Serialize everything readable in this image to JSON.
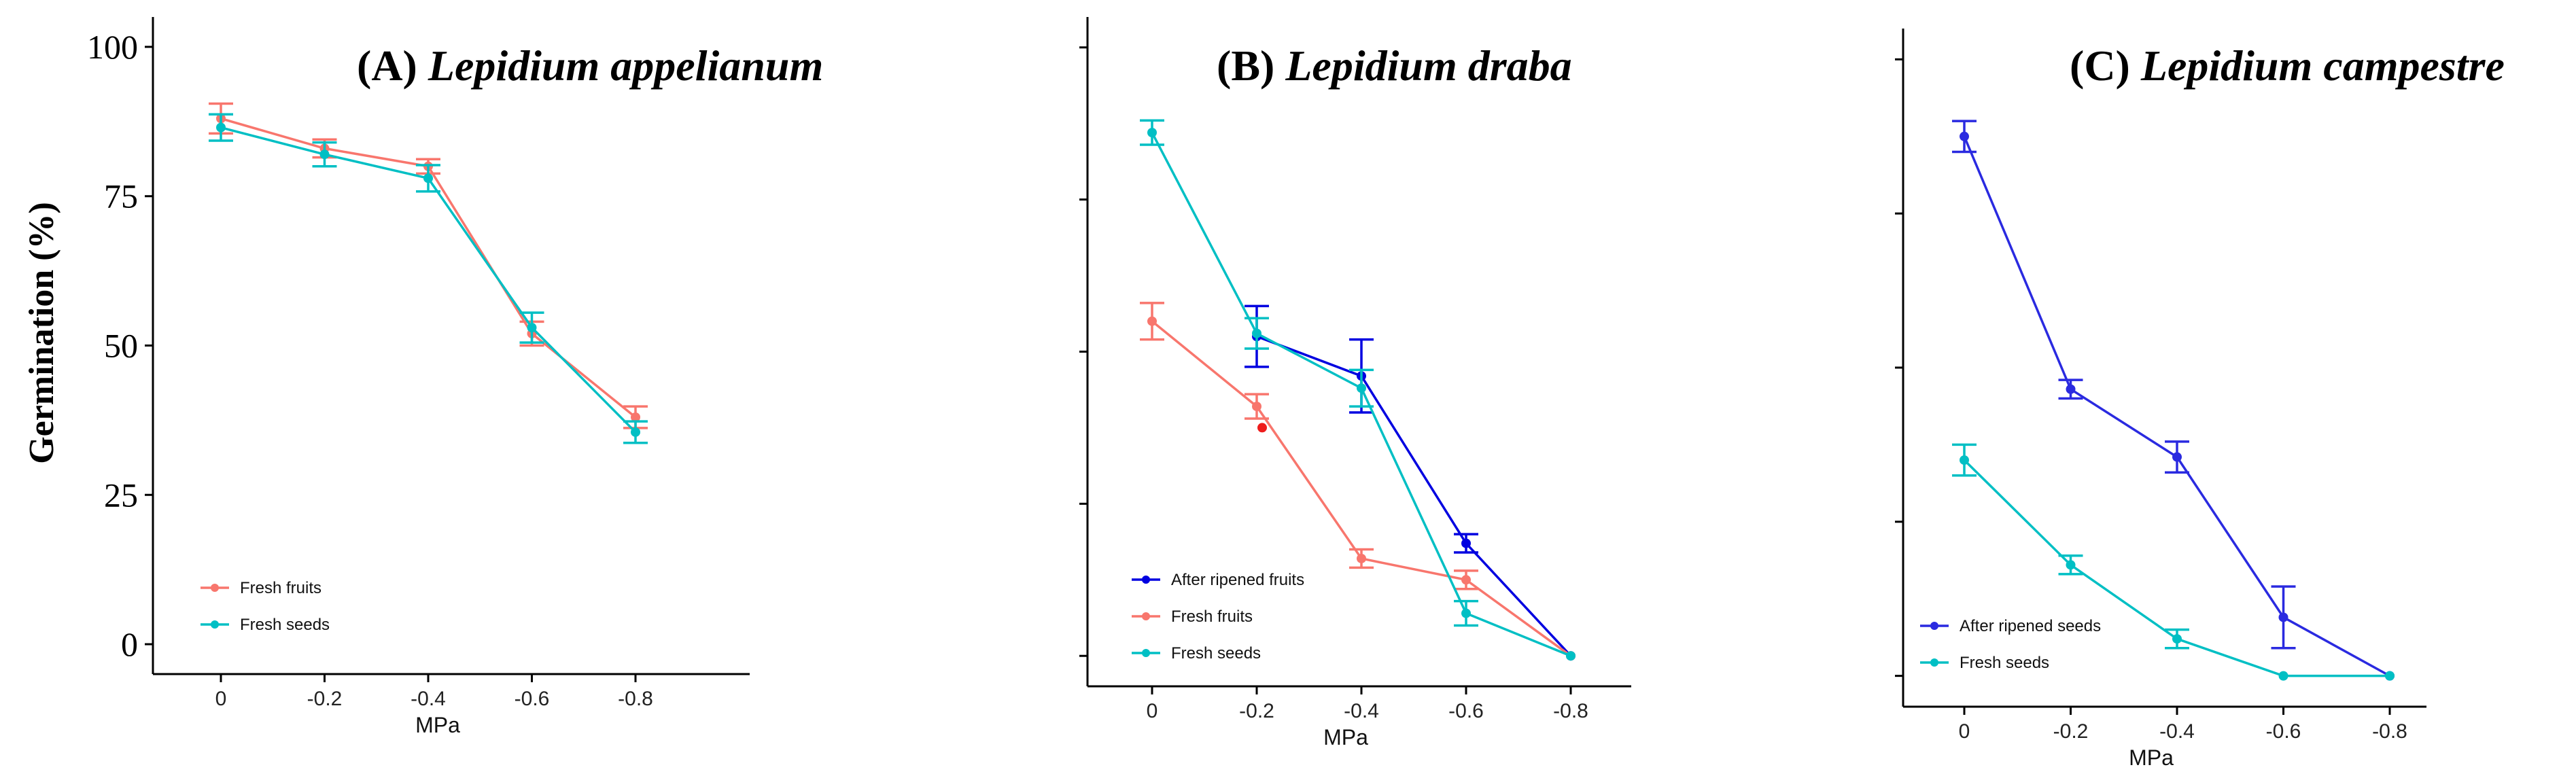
{
  "figure": {
    "y_axis_label": "Germination  (%)",
    "x_axis_label": "MPa"
  },
  "chart_data": [
    {
      "type": "line",
      "panel_label": "(A)",
      "title_species": "Lepidium appelianum",
      "xlabel": "MPa",
      "ylabel": "Germination  (%)",
      "categories": [
        "0",
        "-0.2",
        "-0.4",
        "-0.6",
        "-0.8"
      ],
      "ylim": [
        -5,
        105
      ],
      "yticks": [
        0,
        25,
        50,
        75,
        100
      ],
      "show_y_tick_labels": true,
      "series": [
        {
          "name": "Fresh fruits",
          "color": "#f8766d",
          "values": [
            88,
            83,
            80,
            52,
            38
          ],
          "errors": [
            2.5,
            1.5,
            1.2,
            2.0,
            1.8
          ]
        },
        {
          "name": "Fresh seeds",
          "color": "#00bfc4",
          "values": [
            86.5,
            82,
            78,
            53,
            35.5
          ],
          "errors": [
            2.2,
            2.0,
            2.2,
            2.5,
            1.8
          ]
        }
      ],
      "legend": {
        "position": "bottom-left",
        "entries": [
          "Fresh fruits",
          "Fresh seeds"
        ]
      }
    },
    {
      "type": "line",
      "panel_label": "(B)",
      "title_species": "Lepidium draba",
      "xlabel": "MPa",
      "ylabel": "",
      "categories": [
        "0",
        "-0.2",
        "-0.4",
        "-0.6",
        "-0.8"
      ],
      "ylim": [
        -5,
        105
      ],
      "yticks": [
        0,
        25,
        50,
        75,
        100
      ],
      "show_y_tick_labels": false,
      "series": [
        {
          "name": "After ripened fruits",
          "color": "#0000e0",
          "values": [
            null,
            52.5,
            46,
            18.5,
            0
          ],
          "errors": [
            null,
            5,
            6,
            1.5,
            0
          ]
        },
        {
          "name": "Fresh fruits",
          "color": "#f8766d",
          "values": [
            55,
            41,
            16,
            12.5,
            0
          ],
          "errors": [
            3,
            2,
            1.5,
            1.5,
            0
          ]
        },
        {
          "name": "Fresh seeds",
          "color": "#00bfc4",
          "values": [
            86,
            53,
            44,
            7,
            0
          ],
          "errors": [
            2,
            2.5,
            3,
            2,
            0
          ]
        }
      ],
      "outlier": {
        "x": "-0.2",
        "y": 37.5,
        "color": "#ee1c1c"
      },
      "legend": {
        "position": "bottom-left",
        "entries": [
          "After ripened fruits",
          "Fresh fruits",
          "Fresh seeds"
        ]
      }
    },
    {
      "type": "line",
      "panel_label": "(C)",
      "title_species": "Lepidium campestre",
      "xlabel": "MPa",
      "ylabel": "",
      "categories": [
        "0",
        "-0.2",
        "-0.4",
        "-0.6",
        "-0.8"
      ],
      "ylim": [
        -5,
        105
      ],
      "yticks": [
        0,
        25,
        50,
        75,
        100
      ],
      "show_y_tick_labels": false,
      "series": [
        {
          "name": "After ripened seeds",
          "color": "#2a2ae0",
          "values": [
            87.5,
            46.5,
            35.5,
            9.5,
            0
          ],
          "errors": [
            2.5,
            1.5,
            2.5,
            5,
            0
          ]
        },
        {
          "name": "Fresh seeds",
          "color": "#00bfc4",
          "values": [
            35,
            18,
            6,
            0,
            0
          ],
          "errors": [
            2.5,
            1.5,
            1.5,
            0,
            0
          ]
        }
      ],
      "legend": {
        "position": "bottom-left",
        "entries": [
          "After ripened seeds",
          "Fresh seeds"
        ]
      }
    }
  ]
}
